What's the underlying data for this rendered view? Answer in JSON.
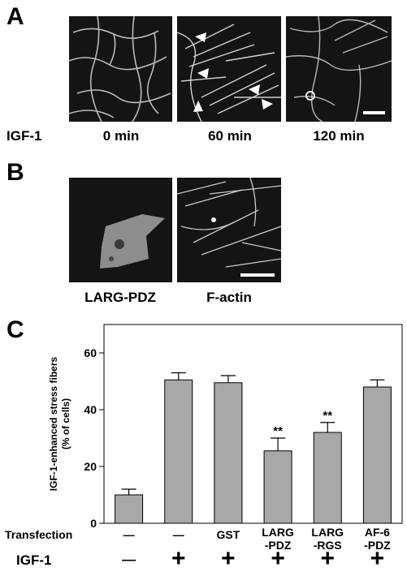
{
  "panel_a": {
    "letter": "A",
    "treatment_label": "IGF-1",
    "time_labels": [
      "0 min",
      "60 min",
      "120 min"
    ]
  },
  "panel_b": {
    "letter": "B",
    "image_labels": [
      "LARG-PDZ",
      "F-actin"
    ]
  },
  "panel_c": {
    "letter": "C",
    "row_labels": {
      "transfection": "Transfection",
      "igf": "IGF-1"
    },
    "transfection_values": [
      "—",
      "—",
      "GST",
      "LARG\n-PDZ",
      "LARG\n-RGS",
      "AF-6\n-PDZ"
    ],
    "igf_values": [
      "—",
      "+",
      "+",
      "+",
      "+",
      "+"
    ]
  },
  "chart_data": {
    "type": "bar",
    "categories": [
      "—",
      "—",
      "GST",
      "LARG -PDZ",
      "LARG -RGS",
      "AF-6 -PDZ"
    ],
    "values": [
      10,
      50.5,
      49.5,
      25.5,
      32,
      48
    ],
    "errors": [
      2,
      2.5,
      2.5,
      4.5,
      3.5,
      2.5
    ],
    "significance": [
      "",
      "",
      "",
      "**",
      "**",
      ""
    ],
    "ylabel": "IGF-1-enhanced stress fibers (% of cells)",
    "ylim": [
      0,
      70
    ],
    "yticks": [
      0,
      20,
      40,
      60
    ],
    "bar_color": "#a8a8a8",
    "grid": false
  }
}
